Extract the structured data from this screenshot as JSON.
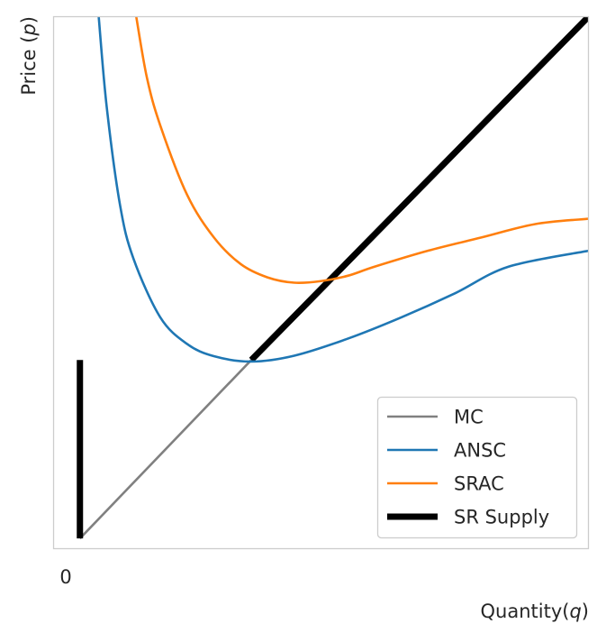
{
  "chart_data": {
    "type": "line",
    "xlabel": "Quantity",
    "xlabel_var": "q",
    "ylabel": "Price",
    "ylabel_var": "p",
    "x_ticks": [
      "0"
    ],
    "y_ticks": [],
    "grid": false,
    "legend_position": "lower right",
    "xlim": [
      0,
      10
    ],
    "ylim": [
      0,
      10
    ],
    "series": [
      {
        "name": "MC",
        "color": "#808080",
        "style": "thin",
        "x": [
          0.5,
          3.7,
          10
        ],
        "y": [
          0.2,
          3.55,
          10
        ]
      },
      {
        "name": "ANSC",
        "color": "#1f77b4",
        "style": "thin",
        "x": [
          0.85,
          1.0,
          1.25,
          1.5,
          2.0,
          2.5,
          3.0,
          3.7,
          4.5,
          5.5,
          6.5,
          7.5,
          8.5,
          10
        ],
        "y": [
          10,
          8.3,
          6.45,
          5.45,
          4.35,
          3.85,
          3.62,
          3.52,
          3.63,
          3.95,
          4.35,
          4.8,
          5.3,
          5.6
        ]
      },
      {
        "name": "SRAC",
        "color": "#ff7f0e",
        "style": "thin",
        "x": [
          1.55,
          1.75,
          2.0,
          2.5,
          3.0,
          3.5,
          4.0,
          4.5,
          5.0,
          5.5,
          6.0,
          7.0,
          8.0,
          9.0,
          10
        ],
        "y": [
          10,
          8.85,
          7.95,
          6.65,
          5.85,
          5.35,
          5.1,
          5.0,
          5.03,
          5.13,
          5.3,
          5.6,
          5.85,
          6.1,
          6.2
        ]
      },
      {
        "name": "SR Supply",
        "color": "#000000",
        "style": "thick",
        "segments": [
          {
            "x": [
              0.5,
              0.5
            ],
            "y": [
              0.2,
              3.55
            ]
          },
          {
            "x": [
              3.7,
              10
            ],
            "y": [
              3.55,
              10
            ]
          }
        ]
      }
    ]
  }
}
